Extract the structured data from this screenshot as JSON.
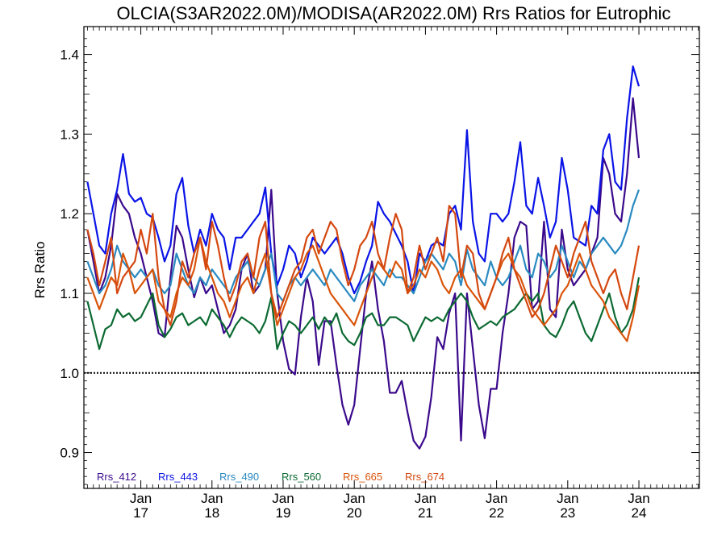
{
  "chart_data": {
    "type": "line",
    "title": "OLCIA(S3AR2022.0M)/MODISA(AR2022.0M)  Rrs Ratios for Eutrophic",
    "xlabel": "",
    "ylabel": "Rrs Ratio",
    "xlim": [
      2016.2,
      2024.85
    ],
    "ylim": [
      0.855,
      1.435
    ],
    "x_ticks": [
      {
        "x": 2017,
        "month": "Jan",
        "year": "17"
      },
      {
        "x": 2018,
        "month": "Jan",
        "year": "18"
      },
      {
        "x": 2019,
        "month": "Jan",
        "year": "19"
      },
      {
        "x": 2020,
        "month": "Jan",
        "year": "20"
      },
      {
        "x": 2021,
        "month": "Jan",
        "year": "21"
      },
      {
        "x": 2022,
        "month": "Jan",
        "year": "22"
      },
      {
        "x": 2023,
        "month": "Jan",
        "year": "23"
      },
      {
        "x": 2024,
        "month": "Jan",
        "year": "24"
      }
    ],
    "y_ticks": [
      {
        "value": 0.9,
        "label": "0.9"
      },
      {
        "value": 1.0,
        "label": "1.0"
      },
      {
        "value": 1.1,
        "label": "1.1"
      },
      {
        "value": 1.2,
        "label": "1.2"
      },
      {
        "value": 1.3,
        "label": "1.3"
      },
      {
        "value": 1.4,
        "label": "1.4"
      }
    ],
    "reference_line": {
      "y": 1.0,
      "style": "dotted",
      "color": "#000000"
    },
    "legend_position": "bottom-left",
    "x_start": 2016.25,
    "x_step": 0.0833333,
    "series": [
      {
        "name": "Rrs_412",
        "color": "#3b0a8c",
        "values": [
          1.18,
          1.14,
          1.1,
          1.12,
          1.16,
          1.225,
          1.21,
          1.2,
          1.17,
          1.15,
          1.12,
          1.09,
          1.05,
          1.045,
          1.12,
          1.185,
          1.17,
          1.13,
          1.095,
          1.12,
          1.1,
          1.11,
          1.08,
          1.05,
          1.06,
          1.08,
          1.13,
          1.15,
          1.1,
          1.11,
          1.13,
          1.23,
          1.1,
          1.04,
          1.005,
          0.998,
          1.07,
          1.12,
          1.09,
          1.01,
          1.065,
          1.065,
          1.01,
          0.96,
          0.935,
          0.96,
          1.03,
          1.1,
          1.14,
          1.08,
          1.04,
          0.975,
          0.975,
          0.99,
          0.95,
          0.915,
          0.905,
          0.92,
          0.97,
          1.045,
          1.03,
          1.075,
          1.1,
          0.915,
          1.1,
          1.03,
          0.96,
          0.918,
          0.98,
          0.98,
          1.05,
          1.1,
          1.17,
          1.19,
          1.185,
          1.08,
          1.09,
          1.19,
          1.08,
          1.07,
          1.18,
          1.13,
          1.11,
          1.12,
          1.13,
          1.15,
          1.17,
          1.27,
          1.25,
          1.2,
          1.19,
          1.25,
          1.345,
          1.27
        ]
      },
      {
        "name": "Rrs_443",
        "color": "#0a14e6",
        "values": [
          1.24,
          1.2,
          1.16,
          1.15,
          1.2,
          1.23,
          1.275,
          1.225,
          1.215,
          1.22,
          1.2,
          1.195,
          1.17,
          1.14,
          1.16,
          1.225,
          1.245,
          1.185,
          1.15,
          1.18,
          1.16,
          1.2,
          1.18,
          1.17,
          1.13,
          1.17,
          1.17,
          1.18,
          1.19,
          1.2,
          1.233,
          1.15,
          1.11,
          1.13,
          1.16,
          1.15,
          1.12,
          1.14,
          1.17,
          1.16,
          1.15,
          1.16,
          1.17,
          1.15,
          1.12,
          1.1,
          1.115,
          1.14,
          1.16,
          1.215,
          1.2,
          1.19,
          1.175,
          1.16,
          1.14,
          1.1,
          1.15,
          1.14,
          1.16,
          1.165,
          1.16,
          1.2,
          1.21,
          1.18,
          1.305,
          1.19,
          1.15,
          1.14,
          1.2,
          1.2,
          1.19,
          1.2,
          1.24,
          1.29,
          1.21,
          1.2,
          1.245,
          1.21,
          1.17,
          1.19,
          1.27,
          1.23,
          1.17,
          1.165,
          1.16,
          1.21,
          1.2,
          1.28,
          1.3,
          1.24,
          1.23,
          1.32,
          1.385,
          1.36
        ]
      },
      {
        "name": "Rrs_490",
        "color": "#2a8ac0",
        "values": [
          1.14,
          1.12,
          1.1,
          1.11,
          1.13,
          1.16,
          1.14,
          1.13,
          1.12,
          1.13,
          1.12,
          1.13,
          1.11,
          1.1,
          1.11,
          1.15,
          1.13,
          1.11,
          1.1,
          1.12,
          1.11,
          1.13,
          1.12,
          1.11,
          1.1,
          1.12,
          1.13,
          1.14,
          1.12,
          1.11,
          1.13,
          1.15,
          1.1,
          1.09,
          1.11,
          1.12,
          1.11,
          1.12,
          1.13,
          1.12,
          1.11,
          1.13,
          1.12,
          1.11,
          1.1,
          1.09,
          1.11,
          1.12,
          1.13,
          1.12,
          1.11,
          1.13,
          1.12,
          1.12,
          1.11,
          1.1,
          1.12,
          1.14,
          1.15,
          1.14,
          1.13,
          1.15,
          1.14,
          1.11,
          1.155,
          1.13,
          1.12,
          1.11,
          1.14,
          1.12,
          1.11,
          1.12,
          1.14,
          1.16,
          1.13,
          1.12,
          1.15,
          1.14,
          1.12,
          1.13,
          1.16,
          1.14,
          1.12,
          1.14,
          1.13,
          1.15,
          1.16,
          1.17,
          1.16,
          1.15,
          1.16,
          1.18,
          1.21,
          1.23
        ]
      },
      {
        "name": "Rrs_560",
        "color": "#0c6a32",
        "values": [
          1.09,
          1.06,
          1.03,
          1.055,
          1.06,
          1.08,
          1.07,
          1.075,
          1.065,
          1.07,
          1.085,
          1.1,
          1.06,
          1.045,
          1.055,
          1.07,
          1.075,
          1.06,
          1.065,
          1.07,
          1.06,
          1.08,
          1.07,
          1.06,
          1.045,
          1.06,
          1.07,
          1.065,
          1.06,
          1.05,
          1.065,
          1.095,
          1.03,
          1.05,
          1.065,
          1.06,
          1.05,
          1.06,
          1.07,
          1.055,
          1.07,
          1.06,
          1.075,
          1.05,
          1.04,
          1.035,
          1.05,
          1.07,
          1.075,
          1.06,
          1.06,
          1.07,
          1.07,
          1.065,
          1.06,
          1.04,
          1.055,
          1.07,
          1.065,
          1.07,
          1.065,
          1.08,
          1.09,
          1.1,
          1.09,
          1.07,
          1.055,
          1.06,
          1.065,
          1.06,
          1.07,
          1.075,
          1.08,
          1.09,
          1.1,
          1.09,
          1.1,
          1.06,
          1.05,
          1.045,
          1.06,
          1.08,
          1.09,
          1.07,
          1.05,
          1.04,
          1.06,
          1.08,
          1.1,
          1.07,
          1.05,
          1.06,
          1.08,
          1.12
        ]
      },
      {
        "name": "Rrs_665",
        "color": "#d9540a",
        "values": [
          1.12,
          1.1,
          1.08,
          1.1,
          1.12,
          1.11,
          1.15,
          1.13,
          1.1,
          1.11,
          1.12,
          1.13,
          1.09,
          1.08,
          1.07,
          1.1,
          1.12,
          1.11,
          1.13,
          1.17,
          1.14,
          1.12,
          1.1,
          1.09,
          1.07,
          1.09,
          1.11,
          1.12,
          1.1,
          1.13,
          1.15,
          1.1,
          1.06,
          1.08,
          1.1,
          1.12,
          1.13,
          1.15,
          1.16,
          1.14,
          1.12,
          1.1,
          1.09,
          1.08,
          1.07,
          1.06,
          1.08,
          1.1,
          1.12,
          1.14,
          1.13,
          1.12,
          1.14,
          1.13,
          1.1,
          1.11,
          1.13,
          1.12,
          1.14,
          1.13,
          1.11,
          1.1,
          1.12,
          1.13,
          1.11,
          1.1,
          1.09,
          1.08,
          1.1,
          1.12,
          1.14,
          1.15,
          1.13,
          1.12,
          1.1,
          1.08,
          1.07,
          1.06,
          1.07,
          1.08,
          1.1,
          1.11,
          1.13,
          1.15,
          1.13,
          1.11,
          1.1,
          1.09,
          1.07,
          1.06,
          1.05,
          1.04,
          1.07,
          1.11
        ]
      },
      {
        "name": "Rrs_674",
        "color": "#d44810",
        "values": [
          1.18,
          1.15,
          1.11,
          1.14,
          1.17,
          1.1,
          1.12,
          1.13,
          1.14,
          1.18,
          1.15,
          1.2,
          1.12,
          1.08,
          1.06,
          1.09,
          1.14,
          1.12,
          1.15,
          1.17,
          1.13,
          1.19,
          1.16,
          1.12,
          1.09,
          1.11,
          1.14,
          1.15,
          1.12,
          1.17,
          1.19,
          1.1,
          1.07,
          1.09,
          1.11,
          1.13,
          1.14,
          1.17,
          1.18,
          1.15,
          1.17,
          1.19,
          1.18,
          1.14,
          1.11,
          1.13,
          1.16,
          1.17,
          1.19,
          1.15,
          1.13,
          1.17,
          1.2,
          1.18,
          1.1,
          1.12,
          1.16,
          1.13,
          1.15,
          1.17,
          1.14,
          1.21,
          1.2,
          1.12,
          1.16,
          1.15,
          1.1,
          1.08,
          1.1,
          1.12,
          1.15,
          1.17,
          1.13,
          1.11,
          1.09,
          1.07,
          1.08,
          1.1,
          1.13,
          1.16,
          1.14,
          1.12,
          1.15,
          1.17,
          1.19,
          1.14,
          1.12,
          1.1,
          1.12,
          1.13,
          1.1,
          1.08,
          1.12,
          1.16
        ]
      }
    ]
  }
}
